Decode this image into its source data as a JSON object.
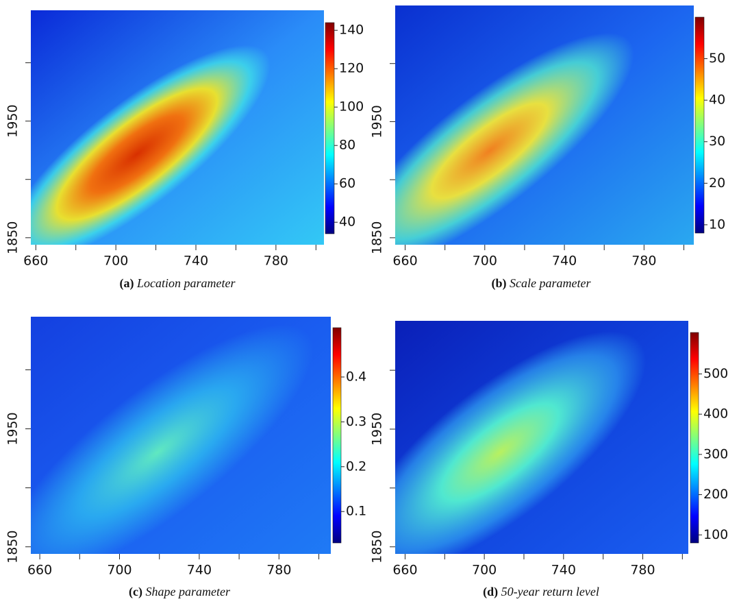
{
  "chart_data": [
    {
      "type": "heatmap",
      "caption": {
        "label": "(a)",
        "text": "Location parameter"
      },
      "xlim": [
        657.5,
        804
      ],
      "xticks": [
        660,
        700,
        740,
        780
      ],
      "xminorticks": [
        680,
        720,
        760,
        800
      ],
      "ylim": [
        1844,
        2045
      ],
      "yticks": [
        1850,
        1950
      ],
      "yminorticks": [
        1900,
        2000
      ],
      "clim": [
        34,
        144
      ],
      "cticks": [
        40,
        60,
        80,
        100,
        120,
        140
      ],
      "colormap": "jet"
    },
    {
      "type": "heatmap",
      "caption": {
        "label": "(b)",
        "text": "Scale parameter"
      },
      "xlim": [
        655,
        805
      ],
      "xticks": [
        660,
        700,
        740,
        780
      ],
      "xminorticks": [
        680,
        720,
        760,
        800
      ],
      "ylim": [
        1844,
        2050
      ],
      "yticks": [
        1850,
        1950
      ],
      "yminorticks": [
        1900,
        2000
      ],
      "clim": [
        8,
        60
      ],
      "cticks": [
        10,
        20,
        30,
        40,
        50
      ],
      "colormap": "jet"
    },
    {
      "type": "heatmap",
      "caption": {
        "label": "(c)",
        "text": "Shape parameter"
      },
      "xlim": [
        655.5,
        806
      ],
      "xticks": [
        660,
        700,
        740,
        780
      ],
      "xminorticks": [
        680,
        720,
        760,
        800
      ],
      "ylim": [
        1844,
        2045
      ],
      "yticks": [
        1850,
        1950
      ],
      "yminorticks": [
        1900,
        2000
      ],
      "clim": [
        0.03,
        0.51
      ],
      "cticks": [
        0.1,
        0.2,
        0.3,
        0.4
      ],
      "colormap": "jet"
    },
    {
      "type": "heatmap",
      "caption": {
        "label": "(d)",
        "text": "50-year return level"
      },
      "xlim": [
        655,
        803
      ],
      "xticks": [
        660,
        700,
        740,
        780
      ],
      "xminorticks": [
        680,
        720,
        760,
        800
      ],
      "ylim": [
        1844,
        2042
      ],
      "yticks": [
        1850,
        1950
      ],
      "yminorticks": [
        1900,
        2000
      ],
      "clim": [
        80,
        603
      ],
      "cticks": [
        100,
        200,
        300,
        400,
        500
      ],
      "colormap": "jet"
    }
  ]
}
